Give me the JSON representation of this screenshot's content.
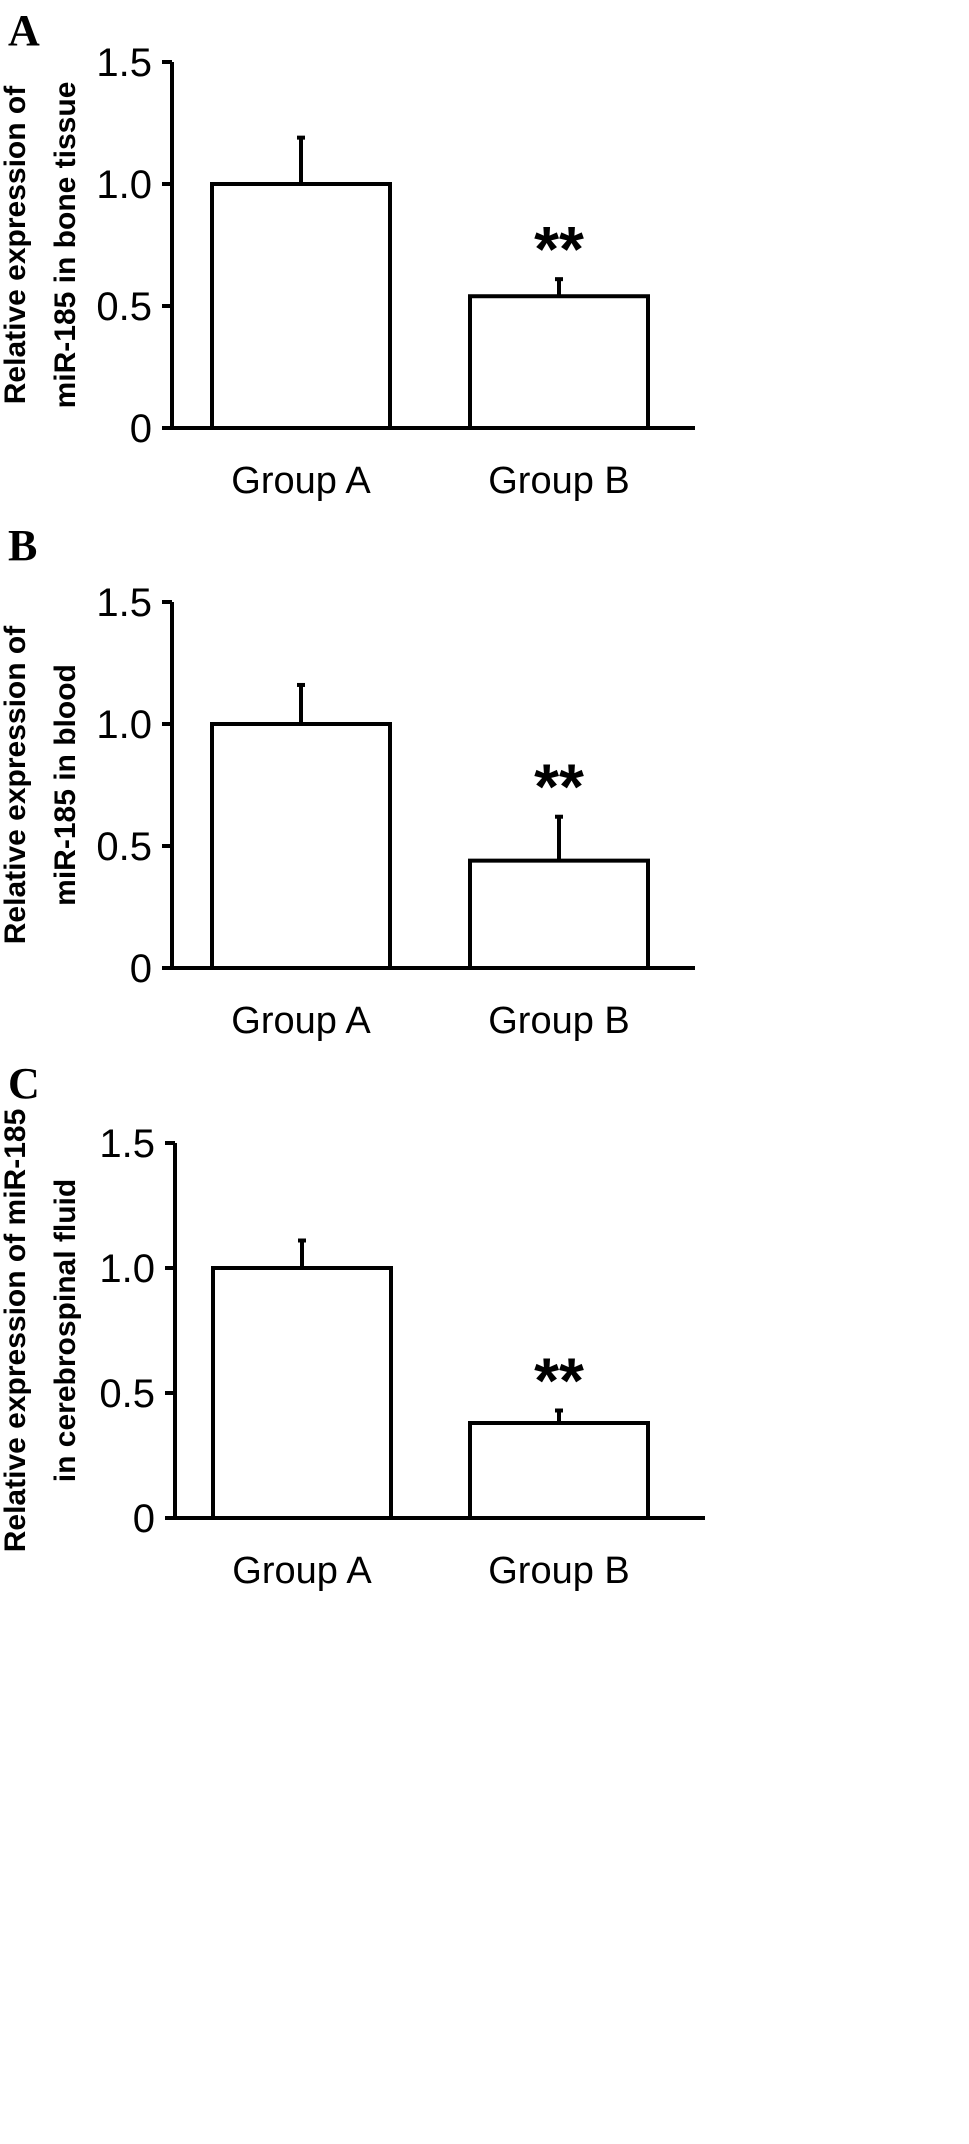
{
  "chart_data": [
    {
      "panel": "A",
      "type": "bar",
      "categories": [
        "Group A",
        "Group B"
      ],
      "values": [
        1.0,
        0.54
      ],
      "errors": [
        0.19,
        0.07
      ],
      "significance": [
        "",
        "**"
      ],
      "ylabel": [
        "Relative expression of",
        "miR-185 in bone tissue"
      ],
      "ylim": [
        0,
        1.5
      ],
      "yticks": [
        0,
        0.5,
        1.0,
        1.5
      ],
      "ytick_labels": [
        "0",
        "0.5",
        "1.0",
        "1.5"
      ],
      "grid": false
    },
    {
      "panel": "B",
      "type": "bar",
      "categories": [
        "Group A",
        "Group B"
      ],
      "values": [
        1.0,
        0.44
      ],
      "errors": [
        0.16,
        0.18
      ],
      "significance": [
        "",
        "**"
      ],
      "ylabel": [
        "Relative expression of",
        "miR-185 in blood"
      ],
      "ylim": [
        0,
        1.5
      ],
      "yticks": [
        0,
        0.5,
        1.0,
        1.5
      ],
      "ytick_labels": [
        "0",
        "0.5",
        "1.0",
        "1.5"
      ],
      "grid": false
    },
    {
      "panel": "C",
      "type": "bar",
      "categories": [
        "Group A",
        "Group B"
      ],
      "values": [
        1.0,
        0.38
      ],
      "errors": [
        0.11,
        0.05
      ],
      "significance": [
        "",
        "**"
      ],
      "ylabel": [
        "Relative expression of miR-185",
        "in cerebrospinal fluid"
      ],
      "ylim": [
        0,
        1.5
      ],
      "yticks": [
        0,
        0.5,
        1.0,
        1.5
      ],
      "ytick_labels": [
        "0",
        "0.5",
        "1.0",
        "1.5"
      ],
      "grid": false
    }
  ]
}
